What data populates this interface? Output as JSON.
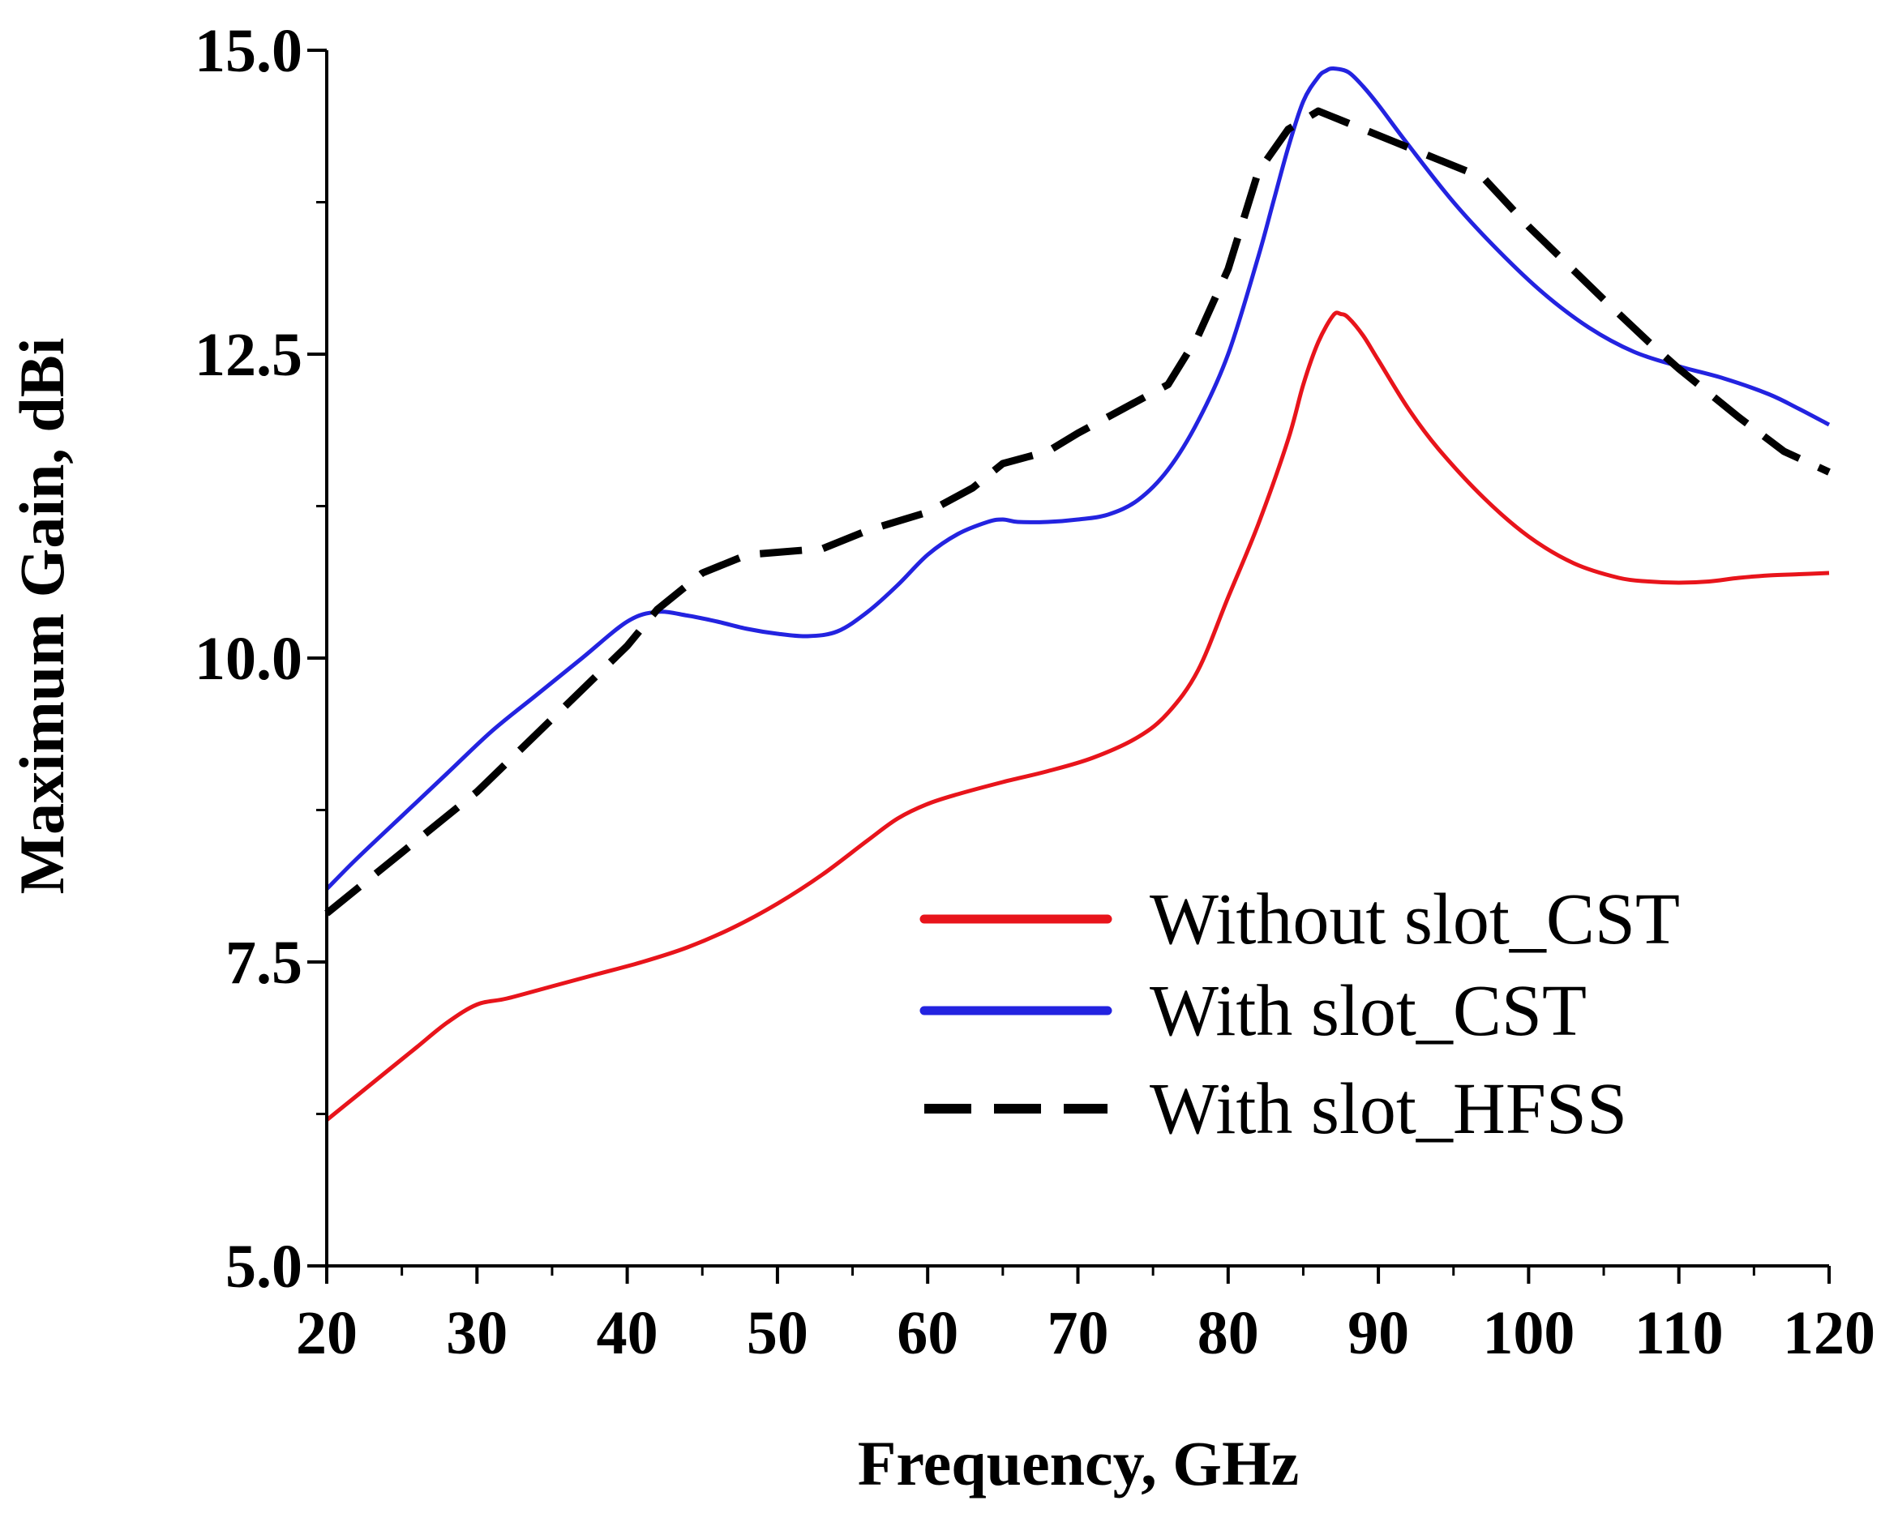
{
  "chart_data": {
    "type": "line",
    "title": "",
    "xlabel": "Frequency, GHz",
    "ylabel": "Maximum Gain, dBi",
    "xlim": [
      20,
      120
    ],
    "ylim": [
      5.0,
      15.0
    ],
    "x_ticks": [
      20,
      30,
      40,
      50,
      60,
      70,
      80,
      90,
      100,
      110,
      120
    ],
    "x_tick_labels": [
      "20",
      "30",
      "40",
      "50",
      "60",
      "70",
      "80",
      "90",
      "100",
      "110",
      "120"
    ],
    "y_ticks": [
      5.0,
      7.5,
      10.0,
      12.5,
      15.0
    ],
    "y_tick_labels": [
      "5.0",
      "7.5",
      "10.0",
      "12.5",
      "15.0"
    ],
    "grid": false,
    "legend_position": "bottom-right",
    "series": [
      {
        "name": "Without slot_CST",
        "color": "#e8141b",
        "style": "solid",
        "x": [
          20,
          22,
          24,
          26,
          28,
          30,
          32,
          35,
          38,
          41,
          44,
          47,
          50,
          53,
          56,
          58,
          60,
          62,
          65,
          68,
          71,
          74,
          76,
          78,
          80,
          82,
          84,
          85,
          86,
          87,
          87.5,
          88,
          89,
          90,
          92,
          94,
          97,
          100,
          103,
          106,
          108,
          110,
          112,
          114,
          116,
          118,
          120
        ],
        "y": [
          6.2,
          6.4,
          6.6,
          6.8,
          7.0,
          7.15,
          7.2,
          7.3,
          7.4,
          7.5,
          7.62,
          7.78,
          7.98,
          8.22,
          8.5,
          8.68,
          8.8,
          8.88,
          8.98,
          9.07,
          9.18,
          9.35,
          9.55,
          9.9,
          10.5,
          11.1,
          11.8,
          12.25,
          12.6,
          12.82,
          12.83,
          12.8,
          12.65,
          12.45,
          12.05,
          11.72,
          11.32,
          11.0,
          10.78,
          10.66,
          10.63,
          10.62,
          10.63,
          10.66,
          10.68,
          10.69,
          10.7
        ]
      },
      {
        "name": "With slot_CST",
        "color": "#2323e0",
        "style": "solid",
        "x": [
          20,
          22,
          25,
          28,
          31,
          34,
          37,
          40,
          42,
          44,
          46,
          48,
          50,
          52,
          54,
          56,
          58,
          60,
          62,
          64,
          65,
          66,
          68,
          70,
          72,
          74,
          76,
          78,
          80,
          82,
          83,
          84,
          85,
          86,
          86.5,
          87,
          88,
          89,
          90,
          92,
          95,
          98,
          101,
          104,
          107,
          110,
          113,
          116,
          118,
          120
        ],
        "y": [
          8.1,
          8.35,
          8.7,
          9.05,
          9.4,
          9.7,
          10.0,
          10.3,
          10.38,
          10.35,
          10.3,
          10.24,
          10.2,
          10.18,
          10.22,
          10.38,
          10.6,
          10.85,
          11.02,
          11.12,
          11.14,
          11.12,
          11.12,
          11.14,
          11.18,
          11.3,
          11.55,
          11.95,
          12.5,
          13.3,
          13.75,
          14.2,
          14.58,
          14.78,
          14.83,
          14.85,
          14.82,
          14.7,
          14.55,
          14.22,
          13.75,
          13.35,
          13.0,
          12.72,
          12.52,
          12.4,
          12.3,
          12.17,
          12.05,
          11.92
        ]
      },
      {
        "name": "With slot_HFSS",
        "color": "#000000",
        "style": "dashed",
        "x": [
          20,
          25,
          30,
          35,
          40,
          42,
          45,
          48,
          50,
          53,
          56,
          60,
          63,
          65,
          68,
          70,
          73,
          76,
          78,
          80,
          82,
          84,
          86,
          87,
          89,
          91,
          94,
          97,
          100,
          105,
          108,
          110,
          114,
          117,
          120
        ],
        "y": [
          7.9,
          8.4,
          8.9,
          9.5,
          10.1,
          10.4,
          10.7,
          10.85,
          10.87,
          10.9,
          11.05,
          11.2,
          11.4,
          11.6,
          11.7,
          11.85,
          12.05,
          12.25,
          12.65,
          13.2,
          14.0,
          14.35,
          14.5,
          14.45,
          14.35,
          14.25,
          14.1,
          13.95,
          13.55,
          12.95,
          12.6,
          12.38,
          11.98,
          11.7,
          11.53
        ]
      }
    ]
  }
}
